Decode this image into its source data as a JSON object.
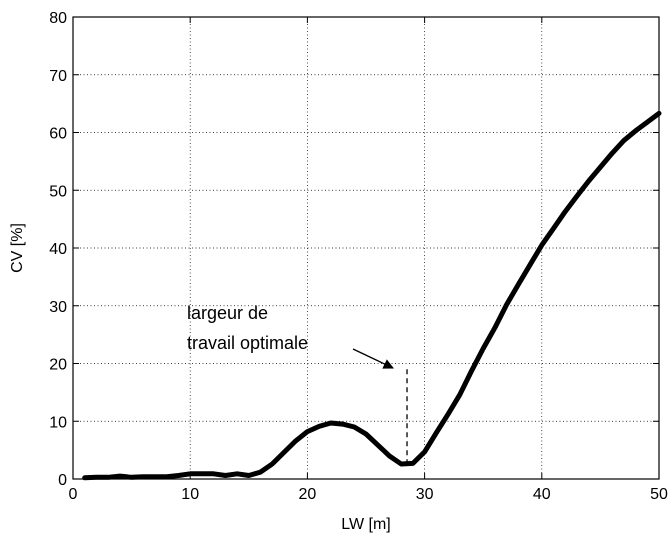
{
  "chart_data": {
    "type": "line",
    "title": "",
    "xlabel": "LW [m]",
    "ylabel": "CV [%]",
    "xlim": [
      0,
      50
    ],
    "ylim": [
      0,
      80
    ],
    "xticks": [
      0,
      10,
      20,
      30,
      40,
      50
    ],
    "yticks": [
      0,
      10,
      20,
      30,
      40,
      50,
      60,
      70,
      80
    ],
    "grid": true,
    "series": [
      {
        "x": [
          1,
          2,
          3,
          4,
          5,
          6,
          7,
          8,
          9,
          10,
          11,
          12,
          13,
          14,
          15,
          16,
          17,
          18,
          19,
          20,
          21,
          22,
          23,
          24,
          25,
          26,
          27,
          28,
          29,
          30,
          31,
          32,
          33,
          34,
          35,
          36,
          37,
          38,
          39,
          40,
          41,
          42,
          43,
          44,
          45,
          46,
          47,
          48,
          49,
          50
        ],
        "y": [
          0.2,
          0.3,
          0.3,
          0.5,
          0.3,
          0.4,
          0.4,
          0.4,
          0.6,
          0.9,
          0.9,
          0.9,
          0.6,
          0.9,
          0.6,
          1.2,
          2.6,
          4.6,
          6.6,
          8.2,
          9.1,
          9.7,
          9.5,
          9.0,
          7.8,
          5.9,
          4.0,
          2.6,
          2.7,
          4.7,
          8.0,
          11.2,
          14.6,
          18.7,
          22.6,
          26.2,
          30.2,
          33.7,
          37.1,
          40.5,
          43.4,
          46.3,
          49.0,
          51.6,
          54.0,
          56.4,
          58.6,
          60.3,
          61.8,
          63.3
        ],
        "color": "#000000"
      }
    ],
    "annotations": [
      {
        "lines": [
          "largeur de",
          "travail optimale"
        ],
        "x": 28.5,
        "y": 19,
        "line_style": "dashed"
      }
    ]
  }
}
